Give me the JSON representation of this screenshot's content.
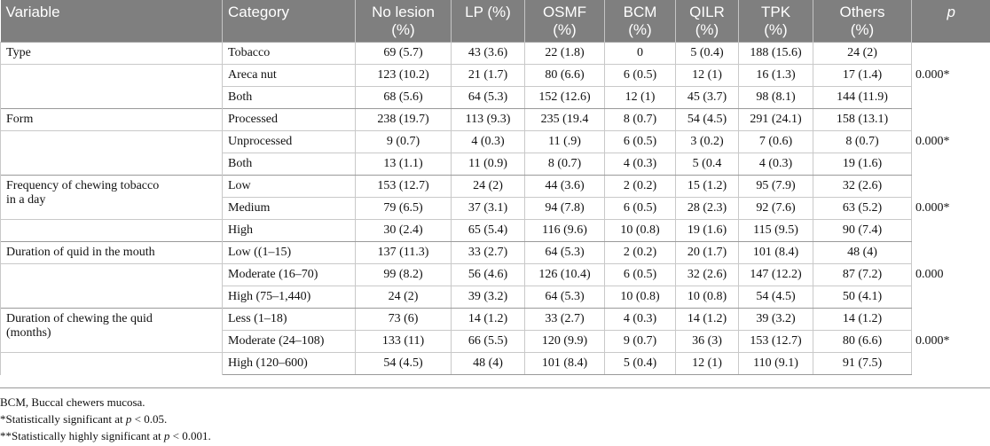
{
  "table": {
    "headers": {
      "variable": "Variable",
      "category": "Category",
      "no_lesion": [
        "No lesion",
        "(%)"
      ],
      "lp": "LP (%)",
      "osmf": [
        "OSMF",
        "(%)"
      ],
      "bcm": [
        "BCM",
        "(%)"
      ],
      "qilr": [
        "QILR",
        "(%)"
      ],
      "tpk": [
        "TPK",
        "(%)"
      ],
      "others": [
        "Others",
        "(%)"
      ],
      "p": "p"
    },
    "groups": [
      {
        "variable": "Type",
        "p_value": "0.000*",
        "rows": [
          {
            "category": "Tobacco",
            "values": [
              "69 (5.7)",
              "43 (3.6)",
              "22 (1.8)",
              "0",
              "5 (0.4)",
              "188 (15.6)",
              "24 (2)"
            ]
          },
          {
            "category": "Areca nut",
            "values": [
              "123 (10.2)",
              "21 (1.7)",
              "80 (6.6)",
              "6 (0.5)",
              "12 (1)",
              "16 (1.3)",
              "17 (1.4)"
            ]
          },
          {
            "category": "Both",
            "values": [
              "68 (5.6)",
              "64 (5.3)",
              "152 (12.6)",
              "12 (1)",
              "45 (3.7)",
              "98 (8.1)",
              "144 (11.9)"
            ]
          }
        ]
      },
      {
        "variable": "Form",
        "p_value": "0.000*",
        "rows": [
          {
            "category": "Processed",
            "values": [
              "238 (19.7)",
              "113 (9.3)",
              "235 (19.4",
              "8 (0.7)",
              "54 (4.5)",
              "291 (24.1)",
              "158 (13.1)"
            ]
          },
          {
            "category": "Unprocessed",
            "values": [
              "9 (0.7)",
              "4 (0.3)",
              "11 (.9)",
              "6 (0.5)",
              "3 (0.2)",
              "7 (0.6)",
              "8 (0.7)"
            ]
          },
          {
            "category": "Both",
            "values": [
              "13 (1.1)",
              "11 (0.9)",
              "8 (0.7)",
              "4 (0.3)",
              "5 (0.4",
              "4 (0.3)",
              "19 (1.6)"
            ]
          }
        ]
      },
      {
        "variable_lines": [
          "Frequency of chewing tobacco",
          "in a day"
        ],
        "p_value": "0.000*",
        "rows": [
          {
            "category": "Low",
            "values": [
              "153 (12.7)",
              "24 (2)",
              "44 (3.6)",
              "2 (0.2)",
              "15 (1.2)",
              "95 (7.9)",
              "32 (2.6)"
            ]
          },
          {
            "category": "Medium",
            "values": [
              "79 (6.5)",
              "37 (3.1)",
              "94 (7.8)",
              "6 (0.5)",
              "28 (2.3)",
              "92 (7.6)",
              "63 (5.2)"
            ]
          },
          {
            "category": "High",
            "values": [
              "30 (2.4)",
              "65 (5.4)",
              "116 (9.6)",
              "10 (0.8)",
              "19 (1.6)",
              "115 (9.5)",
              "90 (7.4)"
            ]
          }
        ]
      },
      {
        "variable": "Duration of quid in the mouth",
        "p_value": "0.000",
        "rows": [
          {
            "category": "Low ((1–15)",
            "values": [
              "137 (11.3)",
              "33 (2.7)",
              "64 (5.3)",
              "2 (0.2)",
              "20 (1.7)",
              "101 (8.4)",
              "48 (4)"
            ]
          },
          {
            "category": "Moderate (16–70)",
            "values": [
              "99 (8.2)",
              "56 (4.6)",
              "126 (10.4)",
              "6 (0.5)",
              "32 (2.6)",
              "147 (12.2)",
              "87 (7.2)"
            ]
          },
          {
            "category": "High (75–1,440)",
            "values": [
              "24 (2)",
              "39 (3.2)",
              "64 (5.3)",
              "10 (0.8)",
              "10 (0.8)",
              "54 (4.5)",
              "50 (4.1)"
            ]
          }
        ]
      },
      {
        "variable_lines": [
          "Duration of chewing the quid",
          "(months)"
        ],
        "p_value": "0.000*",
        "rows": [
          {
            "category": "Less (1–18)",
            "values": [
              "73 (6)",
              "14 (1.2)",
              "33 (2.7)",
              "4 (0.3)",
              "14 (1.2)",
              "39 (3.2)",
              "14 (1.2)"
            ]
          },
          {
            "category": "Moderate (24–108)",
            "values": [
              "133 (11)",
              "66 (5.5)",
              "120 (9.9)",
              "9 (0.7)",
              "36 (3)",
              "153 (12.7)",
              "80 (6.6)"
            ]
          },
          {
            "category": "High (120–600)",
            "values": [
              "54 (4.5)",
              "48 (4)",
              "101 (8.4)",
              "5 (0.4)",
              "12 (1)",
              "110 (9.1)",
              "91 (7.5)"
            ]
          }
        ]
      }
    ]
  },
  "notes": {
    "abbrev": "BCM, Buccal chewers mucosa.",
    "sig1_prefix": "*Statistically significant at ",
    "sig1_var": "p",
    "sig1_suffix": " < 0.05.",
    "sig2_prefix": "**Statistically highly significant at ",
    "sig2_var": "p",
    "sig2_suffix": " < 0.001."
  },
  "colors": {
    "header_bg": "#7f7f7f",
    "header_text": "#ffffff",
    "grid_line": "#c9c9c9"
  }
}
